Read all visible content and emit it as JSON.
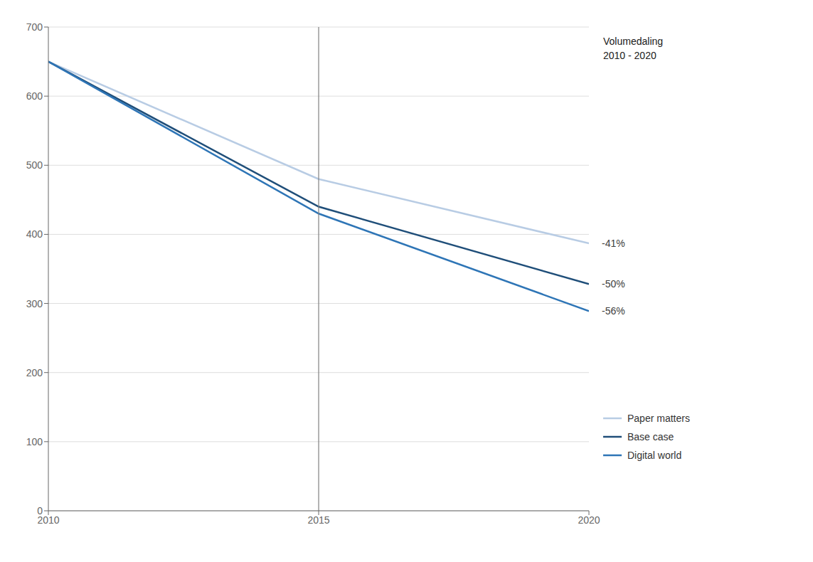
{
  "chart_data": {
    "type": "line",
    "x": [
      2010,
      2015,
      2020
    ],
    "series": [
      {
        "name": "Paper matters",
        "color": "#b8cce4",
        "values": [
          650,
          480,
          387
        ]
      },
      {
        "name": "Base case",
        "color": "#1f4e79",
        "values": [
          650,
          440,
          328
        ]
      },
      {
        "name": "Digital world",
        "color": "#2e75b6",
        "values": [
          650,
          430,
          289
        ]
      }
    ],
    "xlim": [
      2010,
      2020
    ],
    "ylim": [
      0,
      700
    ],
    "xticks": [
      2010,
      2015,
      2020
    ],
    "yticks": [
      0,
      100,
      200,
      300,
      400,
      500,
      600,
      700
    ],
    "grid": "y",
    "legend": "lower right",
    "reference_lines": [
      {
        "x": 2015,
        "color": "#808080"
      }
    ],
    "annotations": [
      {
        "text": "Volumedaling\n2010 - 2020"
      },
      {
        "text": "-41%",
        "y": 387
      },
      {
        "text": "-50%",
        "y": 328
      },
      {
        "text": "-56%",
        "y": 289
      }
    ]
  }
}
